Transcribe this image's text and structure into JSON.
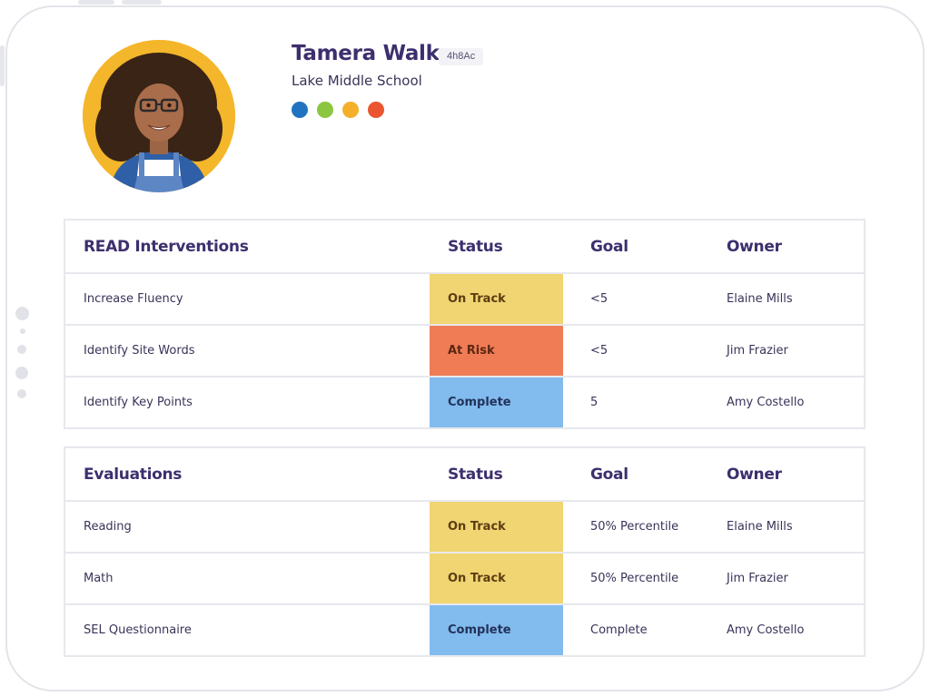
{
  "student": {
    "name": "Tamera Walker",
    "id_tag": "4h8Ac",
    "school": "Lake Middle School",
    "tag_colors": [
      "#2272c2",
      "#8cc63f",
      "#f4b02a",
      "#ea5530"
    ]
  },
  "interventions": {
    "headers": [
      "READ Interventions",
      "Status",
      "Goal",
      "Owner"
    ],
    "rows": [
      {
        "name": "Increase Fluency",
        "status": "On Track",
        "status_kind": "ontrack",
        "goal": "<5",
        "owner": "Elaine Mills"
      },
      {
        "name": "Identify Site Words",
        "status": "At Risk",
        "status_kind": "atrisk",
        "goal": "<5",
        "owner": "Jim Frazier"
      },
      {
        "name": "Identify Key Points",
        "status": "Complete",
        "status_kind": "complete",
        "goal": "5",
        "owner": "Amy Costello"
      }
    ]
  },
  "evaluations": {
    "headers": [
      "Evaluations",
      "Status",
      "Goal",
      "Owner"
    ],
    "rows": [
      {
        "name": "Reading",
        "status": "On Track",
        "status_kind": "ontrack",
        "goal": "50% Percentile",
        "owner": "Elaine Mills"
      },
      {
        "name": "Math",
        "status": "On Track",
        "status_kind": "ontrack",
        "goal": "50% Percentile",
        "owner": "Jim Frazier"
      },
      {
        "name": "SEL Questionnaire",
        "status": "Complete",
        "status_kind": "complete",
        "goal": "Complete",
        "owner": "Amy Costello"
      }
    ]
  },
  "status_colors": {
    "ontrack": "#f0d572",
    "atrisk": "#f07c55",
    "complete": "#82bbee"
  }
}
